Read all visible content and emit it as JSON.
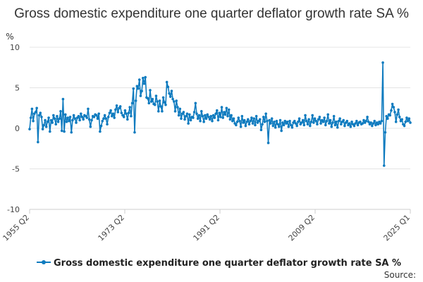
{
  "chart_data": {
    "type": "line",
    "title": "Gross domestic expenditure one quarter deflator growth rate SA %",
    "ylabel": "%",
    "xlabel": "",
    "ylim": [
      -10,
      10
    ],
    "y_ticks": [
      "10",
      "5",
      "0",
      "-5",
      "-10"
    ],
    "x_ticks": [
      "1955 Q2",
      "1973 Q2",
      "1991 Q2",
      "2009 Q2",
      "2025 Q1"
    ],
    "grid": true,
    "legend_position": "bottom",
    "source_label": "Source:",
    "series": [
      {
        "name": "Gross domestic expenditure one quarter deflator growth rate SA %",
        "color": "#0f7bbf",
        "x_start": "1955 Q2",
        "x_end": "2025 Q1",
        "values": [
          -0.1,
          1.3,
          2.4,
          0.9,
          1.8,
          2.0,
          2.5,
          -1.7,
          1.6,
          1.9,
          1.4,
          -0.1,
          0.4,
          1.0,
          0.2,
          0.8,
          1.3,
          -0.4,
          1.0,
          0.7,
          1.6,
          1.2,
          0.5,
          1.5,
          0.8,
          1.2,
          2.1,
          -0.3,
          3.6,
          -0.4,
          1.7,
          0.8,
          1.3,
          0.9,
          1.4,
          -0.5,
          1.0,
          1.6,
          1.2,
          0.7,
          1.3,
          1.5,
          1.0,
          1.8,
          1.4,
          1.1,
          1.6,
          1.5,
          1.3,
          2.4,
          1.1,
          0.2,
          1.0,
          1.5,
          1.4,
          1.7,
          1.6,
          1.2,
          1.8,
          -0.4,
          0.3,
          0.9,
          1.2,
          1.6,
          1.2,
          0.5,
          1.4,
          1.9,
          2.2,
          1.5,
          1.8,
          1.3,
          2.3,
          2.8,
          2.0,
          2.5,
          2.7,
          1.9,
          1.6,
          1.4,
          2.2,
          1.8,
          1.1,
          1.9,
          2.6,
          1.5,
          3.1,
          4.9,
          -0.5,
          3.4,
          5.2,
          4.9,
          6.0,
          4.0,
          4.6,
          6.2,
          5.5,
          6.3,
          3.8,
          3.7,
          3.1,
          4.7,
          3.3,
          3.6,
          3.0,
          2.9,
          4.0,
          3.3,
          2.1,
          3.4,
          2.7,
          2.1,
          3.8,
          3.2,
          2.9,
          5.7,
          5.1,
          4.3,
          3.9,
          4.6,
          3.6,
          3.3,
          2.1,
          3.4,
          2.6,
          1.6,
          2.4,
          1.2,
          1.8,
          2.0,
          1.1,
          1.5,
          1.8,
          0.6,
          1.7,
          1.0,
          1.4,
          1.3,
          2.0,
          3.1,
          1.8,
          1.2,
          1.6,
          0.9,
          2.1,
          1.5,
          0.8,
          1.6,
          1.2,
          1.7,
          1.4,
          1.1,
          1.5,
          0.9,
          1.6,
          1.3,
          1.8,
          2.2,
          1.0,
          1.9,
          1.4,
          2.6,
          1.3,
          2.0,
          1.7,
          2.5,
          1.5,
          2.3,
          1.1,
          1.6,
          0.9,
          1.2,
          0.6,
          0.4,
          0.8,
          1.3,
          0.9,
          0.2,
          1.5,
          0.7,
          1.0,
          0.3,
          0.8,
          1.1,
          0.5,
          0.9,
          1.3,
          0.6,
          1.2,
          0.4,
          1.5,
          0.7,
          0.9,
          1.1,
          -0.2,
          0.5,
          1.4,
          0.8,
          1.8,
          0.9,
          -1.8,
          1.0,
          0.6,
          1.2,
          0.3,
          0.8,
          0.1,
          0.9,
          0.5,
          0.2,
          1.0,
          -0.3,
          0.7,
          0.4,
          0.9,
          0.6,
          0.8,
          0.2,
          0.9,
          0.4,
          0.1,
          0.7,
          0.9,
          0.6,
          0.3,
          0.8,
          1.2,
          0.5,
          0.7,
          1.0,
          0.4,
          1.6,
          0.9,
          0.5,
          1.1,
          0.3,
          0.8,
          1.6,
          0.7,
          1.2,
          0.9,
          0.5,
          1.1,
          1.4,
          0.6,
          1.0,
          0.8,
          1.3,
          0.4,
          0.9,
          1.7,
          0.6,
          1.0,
          0.2,
          0.7,
          1.5,
          0.4,
          0.8,
          0.1,
          0.9,
          1.2,
          0.5,
          0.8,
          1.0,
          0.3,
          0.7,
          0.9,
          0.4,
          0.6,
          0.2,
          0.8,
          0.5,
          0.3,
          0.6,
          0.9,
          0.4,
          0.7,
          0.8,
          0.5,
          0.6,
          1.0,
          0.7,
          0.9,
          1.4,
          0.8,
          0.5,
          0.7,
          0.3,
          0.6,
          0.9,
          0.4,
          0.7,
          0.5,
          0.8,
          0.6,
          0.9,
          8.1,
          -4.6,
          -0.5,
          1.5,
          1.2,
          1.7,
          1.6,
          2.2,
          3.0,
          2.6,
          2.0,
          0.8,
          1.7,
          2.3,
          1.4,
          0.9,
          1.1,
          0.5,
          0.3,
          0.8,
          1.3,
          0.9,
          1.2,
          0.7
        ]
      }
    ]
  }
}
